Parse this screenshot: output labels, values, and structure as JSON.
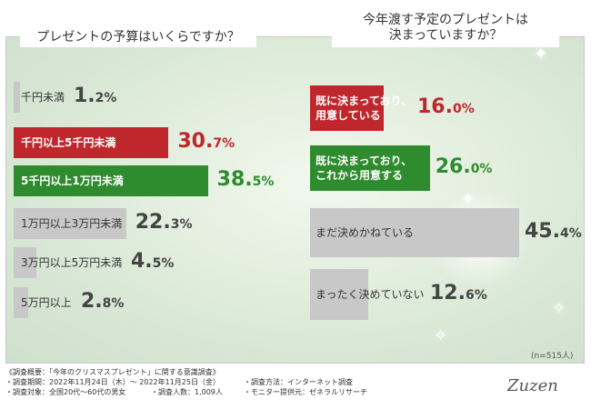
{
  "chart_data": [
    {
      "type": "bar",
      "orientation": "horizontal",
      "title": "プレゼントの予算はいくらですか？",
      "max": 40,
      "categories": [
        "千円未満",
        "千円以上5千円未満",
        "5千円以上1万円未満",
        "1万円以上3万円未満",
        "3万円以上5万円未満",
        "5万円以上"
      ],
      "values": [
        1.2,
        30.7,
        38.5,
        22.3,
        4.5,
        2.8
      ],
      "value_labels": [
        {
          "int": "1.",
          "dec": "2%"
        },
        {
          "int": "30.",
          "dec": "7%"
        },
        {
          "int": "38.",
          "dec": "5%"
        },
        {
          "int": "22.",
          "dec": "3%"
        },
        {
          "int": "4.",
          "dec": "5%"
        },
        {
          "int": "2.",
          "dec": "8%"
        }
      ],
      "colors": [
        "#c8c8c8",
        "#c0272d",
        "#2e8b2e",
        "#c8c8c8",
        "#c8c8c8",
        "#c8c8c8"
      ],
      "label_colors": [
        "#333333",
        "#ffffff",
        "#ffffff",
        "#333333",
        "#333333",
        "#333333"
      ],
      "value_colors": [
        "#444444",
        "#c0272d",
        "#2e8b2e",
        "#444444",
        "#444444",
        "#444444"
      ]
    },
    {
      "type": "bar",
      "orientation": "horizontal",
      "title_lines": [
        "今年渡す予定のプレゼントは",
        "決まっていますか？"
      ],
      "max": 45.4,
      "categories": [
        "既に決まっており、用意している",
        "既に決まっており、これから用意する",
        "まだ決めかねている",
        "まったく決めていない"
      ],
      "category_lines": [
        [
          "既に決まっており、",
          "用意している"
        ],
        [
          "既に決まっており、",
          "これから用意する"
        ],
        [
          "まだ決めかねている"
        ],
        [
          "まったく決めていない"
        ]
      ],
      "values": [
        16.0,
        26.0,
        45.4,
        12.6
      ],
      "value_labels": [
        {
          "int": "16.",
          "dec": "0%"
        },
        {
          "int": "26.",
          "dec": "0%"
        },
        {
          "int": "45.",
          "dec": "4%"
        },
        {
          "int": "12.",
          "dec": "6%"
        }
      ],
      "colors": [
        "#c0272d",
        "#2e8b2e",
        "#c8c8c8",
        "#c8c8c8"
      ],
      "label_colors": [
        "#ffffff",
        "#ffffff",
        "#333333",
        "#333333"
      ],
      "value_colors": [
        "#c0272d",
        "#2e8b2e",
        "#444444",
        "#444444"
      ]
    }
  ],
  "note": "(n=515人)",
  "footer": {
    "line1": "《調査概要：「今年のクリスマスプレゼント」に関する意識調査》",
    "period": "・調査期間：2022年11月24日（木）～ 2022年11月25日（金）",
    "method": "・調査方法：インターネット調査",
    "target": "・調査対象：全国20代～60代の男女",
    "count": "・調査人数：1,009人",
    "provider": "・モニター提供元：ゼネラルリサーチ"
  },
  "logo": "Zuzen"
}
